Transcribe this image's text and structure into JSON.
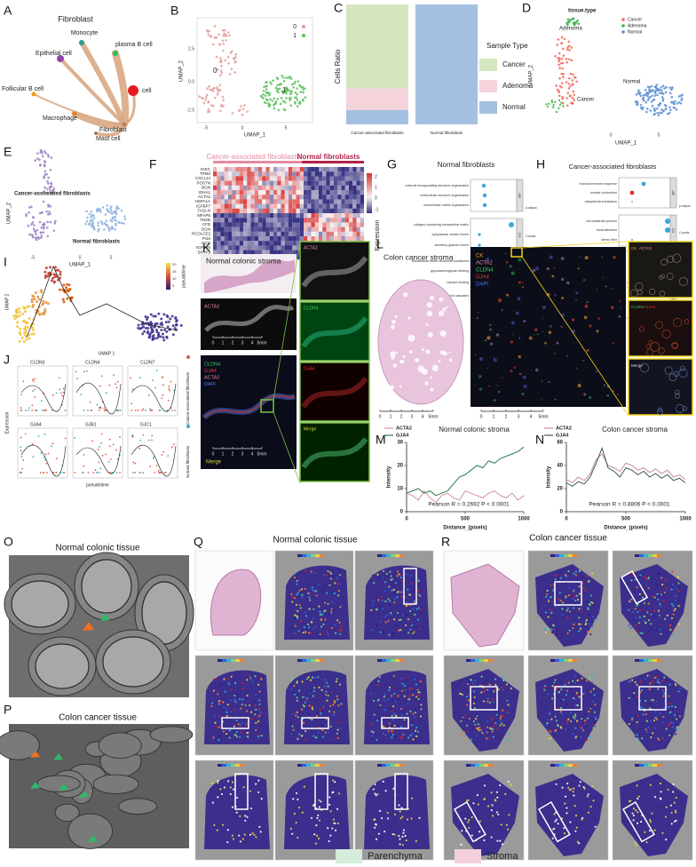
{
  "A": {
    "letter": "A",
    "title": "Fibroblast",
    "nodes": [
      "Monocyte",
      "plasma B cell",
      "Epithelial cell",
      "cell",
      "Follicular B cell",
      "Fibroblast",
      "Macrophage",
      "Mast cell"
    ]
  },
  "B": {
    "letter": "B",
    "legend": [
      "0",
      "1"
    ],
    "clusters": [
      "0",
      "1"
    ],
    "xlabel": "UMAP_1",
    "ylabel": "UMAP_2",
    "xticks": [
      -5,
      0,
      5
    ],
    "yticks": [
      2.5,
      "0.0",
      -2.5
    ]
  },
  "C": {
    "letter": "C",
    "ylabel": "Cells Ratio",
    "categories": [
      "Cancer-associated fibroblasts",
      "Normal fibroblasts"
    ],
    "legend_title": "Sample Type",
    "series": [
      {
        "name": "Cancer",
        "color": "#d5e6c0",
        "values": [
          0.7,
          0
        ]
      },
      {
        "name": "Adenoma",
        "color": "#f4d3da",
        "values": [
          0.18,
          0
        ]
      },
      {
        "name": "Normal",
        "color": "#a4c0e0",
        "values": [
          0.12,
          1
        ]
      }
    ],
    "ylim": [
      0,
      1
    ]
  },
  "D": {
    "letter": "D",
    "legend_title": "tissue.type",
    "legend": [
      "Cancer",
      "Adenoma",
      "Normal"
    ],
    "clusters": [
      "Adenoma",
      "Cancer",
      "Normal"
    ],
    "xlabel": "UMAP_1",
    "ylabel": "UMAP_2",
    "xticks": [
      0,
      5
    ]
  },
  "E": {
    "letter": "E",
    "clusters": [
      "Cancer-associated fibroblasts",
      "Normal fibroblasts"
    ],
    "xlabel": "UMAP_1",
    "ylabel": "UMAP_2",
    "xticks": [
      -5,
      0,
      5
    ]
  },
  "F": {
    "letter": "F",
    "groups": [
      "Cancer-associated fibroblasts",
      "Normal fibroblasts"
    ],
    "genes": [
      "IGKC",
      "TPM2",
      "CXCL14",
      "POSTN",
      "BGN",
      "IGHA1",
      "ACTA2",
      "HSPA1A",
      "IGFBP7",
      "TAGLN",
      "MFAP5",
      "TNXB",
      "CFD",
      "OGN",
      "PCOLCE2",
      "PI16",
      "DCN",
      "IGFBP6",
      "SFRP2",
      "SLPI"
    ],
    "colorbar_ticks": [
      2,
      1,
      0,
      -1
    ],
    "colorbar_title": "Expression"
  },
  "G": {
    "letter": "G",
    "title": "Normal fibroblasts",
    "terms": [
      "external encapsulating structure organization",
      "extracellular structure organization",
      "extracellular matrix organization",
      "collagen-containing extracellular matrix",
      "cytoplasmic vesicle lumen",
      "secretory granule lumen",
      "extracellular matrix structural constituent",
      "glycosaminoglycan binding",
      "heparin binding",
      "Complement and coagulation cascades"
    ],
    "groups": [
      "BP",
      "CC",
      "MF",
      "KEGG"
    ],
    "xlabel": "GeneRatio",
    "legend": [
      "p.adjust",
      "Counts"
    ]
  },
  "H": {
    "letter": "H",
    "title": "Cancer-associated fibroblasts",
    "terms": [
      "humoral immune response",
      "muscle contraction",
      "cytoplasmic translation",
      "cell-substrate junction",
      "focal adhesion",
      "stress fiber",
      "peptidase regulator activity",
      "actin filament binding",
      "structural constituent of ribosome",
      "Coronavirus disease - COVID-19",
      "Regulation of actin cytoskeleton",
      "Ribosome"
    ],
    "groups": [
      "BP",
      "CC",
      "MF",
      "KEGG"
    ],
    "xlabel": "GeneRatio",
    "legend": [
      "p.adjust",
      "Counts"
    ]
  },
  "I": {
    "letter": "I",
    "colorbar_title": "pseudotime",
    "colorbar_ticks": [
      20,
      15,
      10,
      5
    ],
    "xlabel": "UMAP 1",
    "ylabel": "UMAP 2"
  },
  "J": {
    "letter": "J",
    "genes": [
      "CLDN3",
      "CLDN4",
      "CLDN7",
      "GJA4",
      "GJB1",
      "GJC1"
    ],
    "ylabel": "Expression",
    "xlabel": "pseudotime",
    "legend": [
      "Cancer-associated fibroblasts",
      "Normal fibroblasts"
    ]
  },
  "K": {
    "letter": "K",
    "title": "Normal colonic stroma",
    "single": "ACTA2",
    "channels": [
      "CLDN4",
      "GJA4",
      "ACTA2",
      "DAPI"
    ],
    "merge": "Merge",
    "zoom": [
      "ACTA2",
      "CLDN4",
      "GJA4",
      "Merge"
    ],
    "scale": [
      0,
      1,
      2,
      3,
      4,
      "5mm"
    ]
  },
  "L": {
    "letter": "L",
    "title": "Colon cancer stroma",
    "channels": [
      "CK",
      "ACTA2",
      "CLDN4",
      "GJA4",
      "DAPI"
    ],
    "zoom": [
      "CK",
      "ACTA2",
      "CLDN4",
      "GJA4",
      "Merge"
    ],
    "scale": [
      0,
      1,
      2,
      3,
      4,
      "5mm"
    ]
  },
  "M": {
    "letter": "M",
    "type": "line",
    "title": "Normal colonic stroma",
    "annotation": "Pearson R = 0.2692   P < 0.0001",
    "xlabel": "Distance_(pixels)",
    "ylabel": "Intensity",
    "x": [
      0,
      50,
      100,
      150,
      200,
      250,
      300,
      350,
      400,
      450,
      500,
      550,
      600,
      650,
      700,
      750,
      800,
      850,
      900,
      950,
      1000
    ],
    "series": [
      {
        "name": "ACTA2",
        "color": "#d393a6",
        "values": [
          8,
          7,
          5,
          9,
          6,
          4,
          7,
          8,
          6,
          5,
          9,
          8,
          7,
          6,
          8,
          9,
          7,
          6,
          8,
          5,
          7
        ]
      },
      {
        "name": "GJA4",
        "color": "#2f7d4f",
        "values": [
          8,
          9,
          10,
          8,
          9,
          7,
          8,
          9,
          12,
          15,
          16,
          18,
          20,
          19,
          22,
          21,
          23,
          24,
          25,
          26,
          28
        ]
      }
    ],
    "xlim": [
      0,
      1000
    ],
    "ylim": [
      0,
      30
    ],
    "xticks": [
      0,
      500,
      1000
    ],
    "yticks": [
      0,
      10,
      20,
      30
    ]
  },
  "N": {
    "letter": "N",
    "type": "line",
    "title": "Colon cancer stroma",
    "annotation": "Pearson R = 0.8806   P < 0.0001",
    "xlabel": "Distance_(pixels)",
    "ylabel": "Intensity",
    "x": [
      0,
      50,
      100,
      150,
      200,
      250,
      300,
      350,
      400,
      450,
      500,
      550,
      600,
      650,
      700,
      750,
      800,
      850,
      900,
      950,
      1000
    ],
    "series": [
      {
        "name": "ACTA2",
        "color": "#c98aa0",
        "values": [
          28,
          25,
          30,
          27,
          33,
          45,
          50,
          40,
          38,
          35,
          42,
          40,
          36,
          38,
          34,
          37,
          33,
          36,
          30,
          32,
          28
        ]
      },
      {
        "name": "GJA4",
        "color": "#3c5a48",
        "values": [
          25,
          22,
          26,
          24,
          30,
          42,
          55,
          38,
          35,
          30,
          38,
          36,
          32,
          35,
          30,
          33,
          29,
          32,
          27,
          29,
          25
        ]
      }
    ],
    "xlim": [
      0,
      1000
    ],
    "ylim": [
      0,
      60
    ],
    "xticks": [
      0,
      500,
      1000
    ],
    "yticks": [
      0,
      20,
      40,
      60
    ]
  },
  "O": {
    "letter": "O",
    "title": "Normal colonic tissue"
  },
  "P": {
    "letter": "P",
    "title": "Colon cancer tissue"
  },
  "Q": {
    "letter": "Q",
    "title": "Normal colonic tissue"
  },
  "R": {
    "letter": "R",
    "title": "Colon cancer tissue"
  },
  "legend": [
    "Parenchyma",
    "Stroma"
  ]
}
